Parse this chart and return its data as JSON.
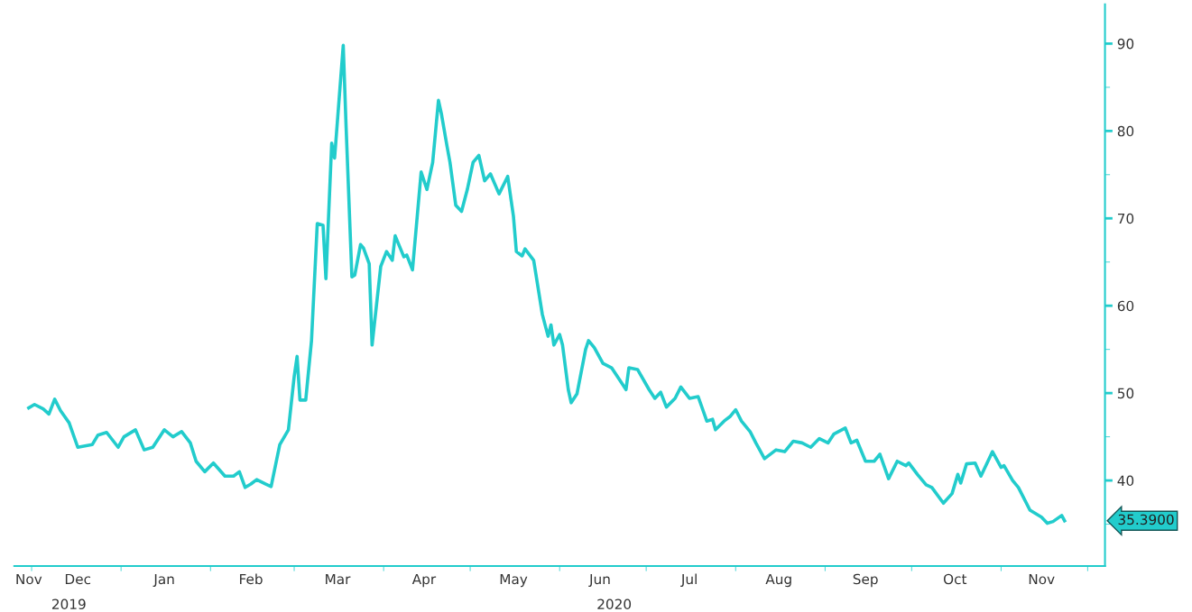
{
  "chart_data": {
    "type": "line",
    "color": "#22cccc",
    "grid": false,
    "legend": false,
    "marker": "none",
    "line_style": "solid",
    "x": [
      "2019-11-30",
      "2019-12-02",
      "2019-12-05",
      "2019-12-07",
      "2019-12-09",
      "2019-12-11",
      "2019-12-14",
      "2019-12-17",
      "2019-12-22",
      "2019-12-24",
      "2019-12-27",
      "2019-12-31",
      "2020-01-02",
      "2020-01-06",
      "2020-01-09",
      "2020-01-12",
      "2020-01-16",
      "2020-01-19",
      "2020-01-22",
      "2020-01-25",
      "2020-01-27",
      "2020-01-30",
      "2020-02-02",
      "2020-02-06",
      "2020-02-09",
      "2020-02-11",
      "2020-02-13",
      "2020-02-15",
      "2020-02-17",
      "2020-02-20",
      "2020-02-22",
      "2020-02-25",
      "2020-02-28",
      "2020-03-01",
      "2020-03-02",
      "2020-03-03",
      "2020-03-05",
      "2020-03-07",
      "2020-03-09",
      "2020-03-11",
      "2020-03-12",
      "2020-03-14",
      "2020-03-15",
      "2020-03-18",
      "2020-03-19",
      "2020-03-21",
      "2020-03-22",
      "2020-03-24",
      "2020-03-25",
      "2020-03-27",
      "2020-03-28",
      "2020-03-31",
      "2020-04-02",
      "2020-04-04",
      "2020-04-05",
      "2020-04-08",
      "2020-04-09",
      "2020-04-11",
      "2020-04-14",
      "2020-04-16",
      "2020-04-18",
      "2020-04-20",
      "2020-04-21",
      "2020-04-23",
      "2020-04-24",
      "2020-04-26",
      "2020-04-28",
      "2020-04-30",
      "2020-05-02",
      "2020-05-04",
      "2020-05-06",
      "2020-05-08",
      "2020-05-11",
      "2020-05-14",
      "2020-05-16",
      "2020-05-17",
      "2020-05-19",
      "2020-05-20",
      "2020-05-23",
      "2020-05-26",
      "2020-05-28",
      "2020-05-29",
      "2020-05-30",
      "2020-06-01",
      "2020-06-02",
      "2020-06-04",
      "2020-06-05",
      "2020-06-07",
      "2020-06-10",
      "2020-06-11",
      "2020-06-13",
      "2020-06-16",
      "2020-06-19",
      "2020-06-22",
      "2020-06-24",
      "2020-06-25",
      "2020-06-28",
      "2020-07-02",
      "2020-07-04",
      "2020-07-06",
      "2020-07-08",
      "2020-07-11",
      "2020-07-13",
      "2020-07-16",
      "2020-07-19",
      "2020-07-22",
      "2020-07-24",
      "2020-07-25",
      "2020-07-28",
      "2020-07-30",
      "2020-08-01",
      "2020-08-03",
      "2020-08-06",
      "2020-08-08",
      "2020-08-11",
      "2020-08-15",
      "2020-08-18",
      "2020-08-21",
      "2020-08-24",
      "2020-08-27",
      "2020-08-30",
      "2020-09-02",
      "2020-09-04",
      "2020-09-08",
      "2020-09-10",
      "2020-09-12",
      "2020-09-15",
      "2020-09-18",
      "2020-09-20",
      "2020-09-23",
      "2020-09-26",
      "2020-09-29",
      "2020-09-30",
      "2020-10-03",
      "2020-10-06",
      "2020-10-08",
      "2020-10-12",
      "2020-10-15",
      "2020-10-17",
      "2020-10-18",
      "2020-10-20",
      "2020-10-23",
      "2020-10-25",
      "2020-10-29",
      "2020-11-01",
      "2020-11-02",
      "2020-11-05",
      "2020-11-07",
      "2020-11-11",
      "2020-11-15",
      "2020-11-17",
      "2020-11-19",
      "2020-11-22",
      "2020-11-23"
    ],
    "values": [
      48.3,
      48.7,
      48.2,
      47.6,
      49.3,
      48.0,
      46.6,
      43.8,
      44.1,
      45.2,
      45.5,
      43.8,
      45.0,
      45.8,
      43.5,
      43.8,
      45.8,
      45.0,
      45.6,
      44.3,
      42.2,
      41.0,
      42.0,
      40.5,
      40.5,
      41.0,
      39.2,
      39.6,
      40.1,
      39.6,
      39.3,
      44.1,
      45.8,
      51.9,
      54.2,
      49.2,
      49.2,
      56.0,
      69.4,
      69.2,
      63.1,
      78.6,
      76.9,
      89.8,
      80.4,
      63.3,
      63.5,
      67.0,
      66.6,
      64.8,
      55.5,
      64.5,
      66.2,
      65.2,
      68.0,
      65.6,
      65.8,
      64.1,
      75.3,
      73.3,
      76.4,
      83.5,
      82.0,
      78.2,
      76.4,
      71.5,
      70.8,
      73.3,
      76.4,
      77.2,
      74.3,
      75.1,
      72.8,
      74.8,
      70.2,
      66.2,
      65.7,
      66.5,
      65.2,
      59.0,
      56.5,
      57.8,
      55.5,
      56.7,
      55.5,
      50.4,
      48.9,
      49.9,
      55.0,
      56.0,
      55.2,
      53.4,
      52.9,
      51.4,
      50.4,
      52.9,
      52.7,
      50.4,
      49.4,
      50.1,
      48.4,
      49.4,
      50.7,
      49.4,
      49.6,
      46.8,
      47.0,
      45.8,
      46.8,
      47.3,
      48.1,
      46.8,
      45.6,
      44.3,
      42.5,
      43.5,
      43.3,
      44.5,
      44.3,
      43.8,
      44.8,
      44.3,
      45.3,
      46.0,
      44.3,
      44.6,
      42.2,
      42.2,
      43.0,
      40.2,
      42.2,
      41.7,
      42.0,
      40.7,
      39.5,
      39.2,
      37.4,
      38.5,
      40.7,
      39.7,
      41.9,
      42.0,
      40.5,
      43.3,
      41.5,
      41.7,
      40.0,
      39.2,
      36.6,
      35.8,
      35.1,
      35.3,
      36.0,
      35.39
    ],
    "xlim": [
      "2019-11-25",
      "2020-12-07"
    ],
    "xticks": [
      {
        "value": "2019-11-30",
        "label": "Nov"
      },
      {
        "value": "2019-12-01",
        "label": null
      },
      {
        "value": "2019-12-17",
        "label": "Dec"
      },
      {
        "value": "2020-01-01",
        "label": null
      },
      {
        "value": "2020-01-16",
        "label": "Jan"
      },
      {
        "value": "2020-02-01",
        "label": null
      },
      {
        "value": "2020-02-15",
        "label": "Feb"
      },
      {
        "value": "2020-03-01",
        "label": null
      },
      {
        "value": "2020-03-16",
        "label": "Mar"
      },
      {
        "value": "2020-04-01",
        "label": null
      },
      {
        "value": "2020-04-15",
        "label": "Apr"
      },
      {
        "value": "2020-05-01",
        "label": null
      },
      {
        "value": "2020-05-16",
        "label": "May"
      },
      {
        "value": "2020-06-01",
        "label": null
      },
      {
        "value": "2020-06-15",
        "label": "Jun"
      },
      {
        "value": "2020-07-01",
        "label": null
      },
      {
        "value": "2020-07-16",
        "label": "Jul"
      },
      {
        "value": "2020-08-01",
        "label": null
      },
      {
        "value": "2020-08-16",
        "label": "Aug"
      },
      {
        "value": "2020-09-01",
        "label": null
      },
      {
        "value": "2020-09-15",
        "label": "Sep"
      },
      {
        "value": "2020-10-01",
        "label": null
      },
      {
        "value": "2020-10-16",
        "label": "Oct"
      },
      {
        "value": "2020-11-01",
        "label": null
      },
      {
        "value": "2020-11-15",
        "label": "Nov"
      },
      {
        "value": "2020-12-01",
        "label": null
      }
    ],
    "ylim": [
      30.2,
      94.5
    ],
    "yticks": [
      {
        "value": 35,
        "label": null
      },
      40,
      {
        "value": 45,
        "label": null
      },
      50,
      {
        "value": 55,
        "label": null
      },
      60,
      {
        "value": 65,
        "label": null
      },
      70,
      {
        "value": 75,
        "label": null
      },
      80,
      {
        "value": 85,
        "label": null
      },
      90
    ],
    "annotations": [
      "2019",
      "2020",
      "35.3900"
    ]
  }
}
